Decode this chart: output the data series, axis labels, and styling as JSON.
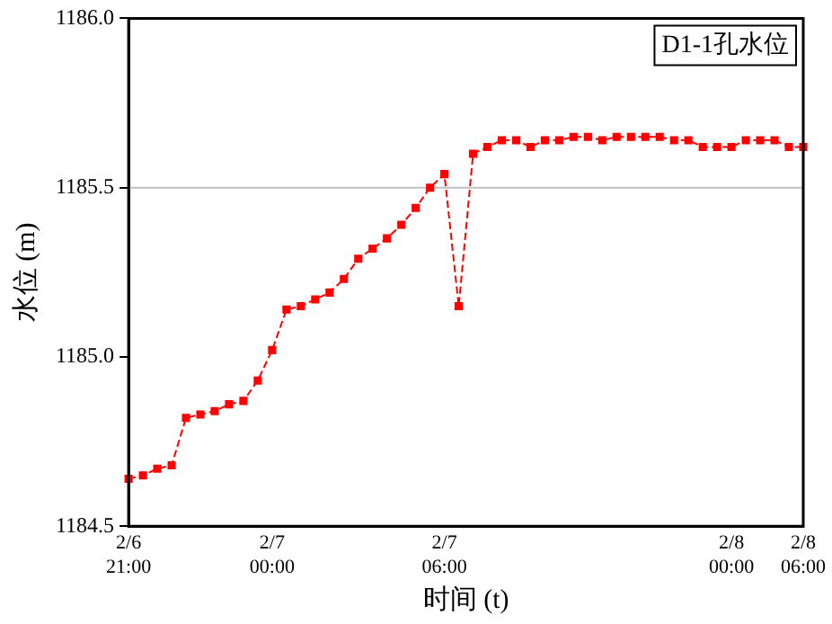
{
  "chart_data": {
    "type": "line",
    "title": "D1-1孔水位",
    "xlabel": "时间 (t)",
    "ylabel": "水位 (m)",
    "categories": [
      "2/6\n21:00",
      null,
      null,
      null,
      null,
      null,
      null,
      null,
      null,
      null,
      "2/7\n00:00",
      null,
      null,
      null,
      null,
      null,
      null,
      null,
      null,
      null,
      null,
      null,
      "2/7\n06:00",
      null,
      null,
      null,
      null,
      null,
      null,
      null,
      null,
      null,
      null,
      null,
      null,
      null,
      null,
      null,
      null,
      null,
      null,
      null,
      "2/8\n00:00",
      null,
      null,
      null,
      null,
      "2/8\n06:00"
    ],
    "series": [
      {
        "color": "#ff0000",
        "values": [
          1184.64,
          1184.65,
          1184.67,
          1184.68,
          1184.82,
          1184.83,
          1184.84,
          1184.86,
          1184.87,
          1184.93,
          1185.02,
          1185.14,
          1185.15,
          1185.17,
          1185.19,
          1185.23,
          1185.29,
          1185.32,
          1185.35,
          1185.39,
          1185.44,
          1185.5,
          1185.54,
          1185.15,
          1185.6,
          1185.62,
          1185.64,
          1185.64,
          1185.62,
          1185.64,
          1185.64,
          1185.65,
          1185.65,
          1185.64,
          1185.65,
          1185.65,
          1185.65,
          1185.65,
          1185.64,
          1185.64,
          1185.62,
          1185.62,
          1185.62,
          1185.64,
          1185.64,
          1185.64,
          1185.62,
          1185.62
        ]
      }
    ],
    "ylim": [
      1184.5,
      1186.0
    ],
    "yticks": [
      {
        "value": 1184.5,
        "label": "1184.5"
      },
      {
        "value": 1185.0,
        "label": "1185.0"
      },
      {
        "value": 1185.5,
        "label": "1185.5"
      },
      {
        "value": 1186.0,
        "label": "1186.0"
      }
    ],
    "ref_lines": [
      {
        "axis": "y",
        "value": 1185.5,
        "color": "#c0c0c0"
      }
    ],
    "grid": false,
    "legend": false,
    "marker": "square",
    "line_style": "dashed"
  }
}
